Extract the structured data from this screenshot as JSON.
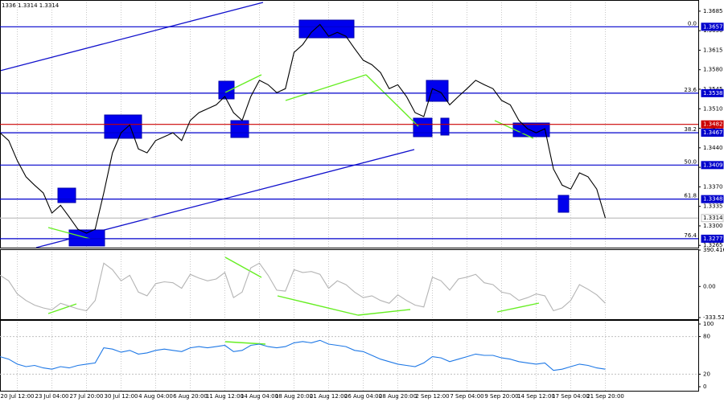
{
  "chart_data": [
    {
      "type": "line",
      "title": "1336 1.3314 1.3314",
      "grid": true,
      "categories": [
        null,
        null,
        "20 Jul 12:00",
        null,
        null,
        null,
        "23 Jul 04:00",
        null,
        null,
        null,
        "27 Jul 20:00",
        null,
        null,
        null,
        "30 Jul 12:00",
        null,
        null,
        null,
        "4 Aug 04:00",
        null,
        null,
        null,
        "6 Aug 20:00",
        null,
        null,
        null,
        "11 Aug 12:00",
        null,
        null,
        null,
        "14 Aug 04:00",
        null,
        null,
        null,
        "18 Aug 20:00",
        null,
        null,
        null,
        "21 Aug 12:00",
        null,
        null,
        null,
        "26 Aug 04:00",
        null,
        null,
        null,
        "28 Aug 20:00",
        null,
        null,
        null,
        "2 Sep 12:00",
        null,
        null,
        null,
        "7 Sep 04:00",
        null,
        null,
        null,
        "9 Sep 20:00",
        null,
        null,
        null,
        "14 Sep 12:00",
        null,
        null,
        null,
        "17 Sep 04:00",
        null,
        null,
        null,
        "21 Sep 20:00"
      ],
      "series": [
        {
          "color": "#000000",
          "values": [
            1.3467,
            1.3453,
            1.3417,
            1.3388,
            1.3373,
            1.3359,
            1.3323,
            1.3337,
            1.3316,
            1.3294,
            1.3287,
            1.3294,
            1.3359,
            1.3431,
            1.3467,
            1.3481,
            1.3438,
            1.3431,
            1.3453,
            1.346,
            1.3467,
            1.3453,
            1.3489,
            1.3503,
            1.351,
            1.3517,
            1.3532,
            1.3503,
            1.3489,
            1.3532,
            1.3561,
            1.3553,
            1.3539,
            1.3546,
            1.3611,
            1.3625,
            1.3647,
            1.3661,
            1.364,
            1.3647,
            1.364,
            1.3618,
            1.3597,
            1.3589,
            1.3575,
            1.3546,
            1.3553,
            1.3532,
            1.3503,
            1.3496,
            1.3546,
            1.3539,
            1.3517,
            1.3532,
            1.3546,
            1.3561,
            1.3553,
            1.3546,
            1.3525,
            1.3517,
            1.3489,
            1.3474,
            1.3467,
            1.3474,
            1.3402,
            1.3373,
            1.3366,
            1.3395,
            1.3388,
            1.3366,
            1.3314
          ]
        }
      ],
      "ylim": [
        1.3261,
        1.3705
      ],
      "yticks": [
        1.3685,
        {
          "value": 1.365,
          "label": "1.3650"
        },
        1.3615,
        {
          "value": 1.358,
          "label": "1.3580"
        },
        1.3545,
        {
          "value": 1.351,
          "label": "1.3510"
        },
        1.3475,
        {
          "value": 1.344,
          "label": "1.3440"
        },
        1.3405,
        {
          "value": 1.337,
          "label": "1.3370"
        },
        1.3335,
        {
          "value": 1.33,
          "label": "1.3300"
        },
        1.3265
      ],
      "levels": [
        {
          "value": 1.3657,
          "label": "0.0",
          "color": "#0000cc"
        },
        {
          "value": 1.3538,
          "label": "23.6",
          "color": "#0000cc"
        },
        {
          "value": 1.3482,
          "color": "#cc0000"
        },
        {
          "value": 1.3467,
          "label": "38.2",
          "color": "#0000cc"
        },
        {
          "value": 1.3409,
          "label": "50.0",
          "color": "#0000cc"
        },
        {
          "value": 1.3348,
          "label": "61.8",
          "color": "#0000cc"
        },
        {
          "value": 1.3314,
          "color": "#c0c0c0"
        },
        {
          "value": 1.3277,
          "label": "76.4",
          "color": "#0000cc"
        }
      ]
    },
    {
      "type": "line",
      "series": [
        {
          "color": "#b4b4b4",
          "values": [
            120,
            60,
            -80,
            -150,
            -200,
            -230,
            -250,
            -180,
            -210,
            -240,
            -260,
            -150,
            250,
            180,
            60,
            120,
            -60,
            -100,
            30,
            50,
            40,
            -20,
            130,
            90,
            60,
            80,
            150,
            -120,
            -60,
            200,
            250,
            120,
            -40,
            -50,
            180,
            150,
            160,
            130,
            -20,
            60,
            20,
            -60,
            -120,
            -100,
            -150,
            -180,
            -90,
            -150,
            -200,
            -220,
            100,
            60,
            -40,
            80,
            100,
            130,
            40,
            20,
            -60,
            -80,
            -150,
            -120,
            -80,
            -100,
            -260,
            -230,
            -150,
            20,
            -30,
            -90,
            -180
          ]
        }
      ],
      "ylim": [
        -333.522,
        390.4163
      ],
      "yticks": [
        390.4163,
        {
          "value": 0,
          "label": "0.00"
        },
        -333.522
      ]
    },
    {
      "type": "line",
      "series": [
        {
          "color": "#1e78e6",
          "values": [
            48,
            44,
            36,
            32,
            34,
            30,
            28,
            32,
            30,
            34,
            36,
            38,
            62,
            60,
            55,
            58,
            52,
            54,
            58,
            60,
            58,
            56,
            62,
            64,
            62,
            64,
            66,
            56,
            58,
            66,
            68,
            64,
            62,
            64,
            70,
            72,
            70,
            74,
            68,
            66,
            64,
            58,
            56,
            50,
            44,
            40,
            36,
            34,
            32,
            38,
            48,
            46,
            40,
            44,
            48,
            52,
            50,
            50,
            46,
            44,
            40,
            38,
            36,
            38,
            26,
            28,
            32,
            36,
            34,
            30,
            28
          ]
        }
      ],
      "ylim": [
        0,
        100
      ],
      "yticks": [
        100,
        80,
        20,
        0
      ]
    }
  ]
}
